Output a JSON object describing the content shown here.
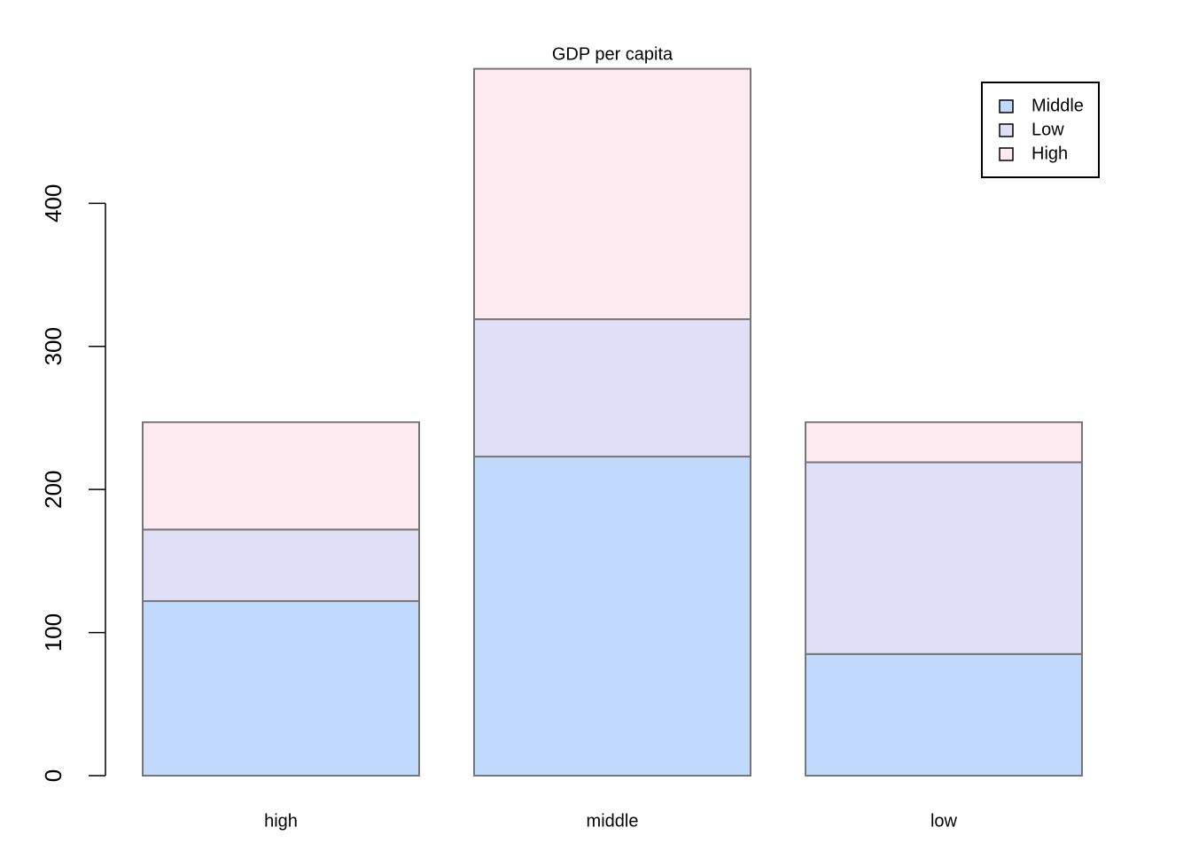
{
  "chart_data": {
    "type": "bar",
    "stacked": true,
    "title": "GDP per capita",
    "categories": [
      "high",
      "middle",
      "low"
    ],
    "series": [
      {
        "name": "Middle",
        "color": "#c0d9fc",
        "values": [
          122,
          223,
          85
        ]
      },
      {
        "name": "Low",
        "color": "#dfdff8",
        "values": [
          50,
          96,
          134
        ]
      },
      {
        "name": "High",
        "color": "#feebf1",
        "values": [
          75,
          175,
          28
        ]
      }
    ],
    "ylim": [
      0,
      495
    ],
    "yticks": [
      0,
      100,
      200,
      300,
      400
    ],
    "grid": false,
    "legend": "top-right"
  }
}
